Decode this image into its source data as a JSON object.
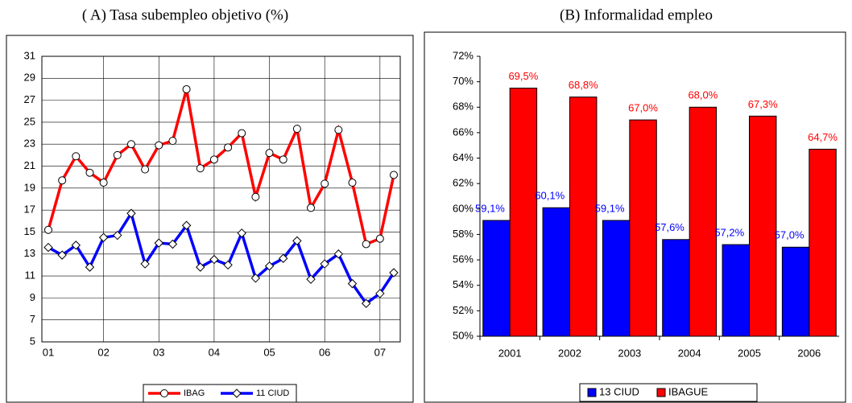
{
  "chart_data": [
    {
      "type": "line",
      "title": "( A) Tasa subempleo objetivo (%)",
      "categories": [
        "01",
        null,
        null,
        null,
        "02",
        null,
        null,
        null,
        "03",
        null,
        null,
        null,
        "04",
        null,
        null,
        null,
        "05",
        null,
        null,
        null,
        "06",
        null,
        null,
        null,
        "07",
        null
      ],
      "series": [
        {
          "name": "IBAG",
          "color": "#ff0000",
          "marker": "circle",
          "values": [
            15.2,
            19.7,
            21.9,
            20.4,
            19.5,
            22.0,
            23.0,
            20.7,
            22.9,
            23.3,
            28.0,
            20.8,
            21.6,
            22.7,
            24.0,
            18.2,
            22.2,
            21.6,
            24.4,
            17.2,
            19.4,
            24.3,
            19.5,
            13.9,
            14.4,
            20.2
          ]
        },
        {
          "name": "11 CIUD",
          "color": "#0000ff",
          "marker": "diamond",
          "values": [
            13.6,
            12.9,
            13.8,
            11.8,
            14.5,
            14.7,
            16.7,
            12.1,
            14.0,
            13.9,
            15.6,
            11.8,
            12.5,
            12.0,
            14.9,
            10.8,
            11.9,
            12.6,
            14.2,
            10.7,
            12.1,
            13.0,
            10.3,
            8.5,
            9.4,
            11.3
          ]
        }
      ],
      "ylim": [
        5,
        31
      ],
      "yticks": [
        5,
        7,
        9,
        11,
        13,
        15,
        17,
        19,
        21,
        23,
        25,
        27,
        29,
        31
      ],
      "grid": true
    },
    {
      "type": "bar",
      "title": "(B) Informalidad empleo",
      "categories": [
        "2001",
        "2002",
        "2003",
        "2004",
        "2005",
        "2006"
      ],
      "series": [
        {
          "name": "13 CIUD",
          "color": "#0000ff",
          "values": [
            59.1,
            60.1,
            59.1,
            57.6,
            57.2,
            57.0
          ],
          "value_labels": [
            "59,1%",
            "60,1%",
            "59,1%",
            "57,6%",
            "57,2%",
            "57,0%"
          ]
        },
        {
          "name": "IBAGUE",
          "color": "#ff0000",
          "values": [
            69.5,
            68.8,
            67.0,
            68.0,
            67.3,
            64.7
          ],
          "value_labels": [
            "69,5%",
            "68,8%",
            "67,0%",
            "68,0%",
            "67,3%",
            "64,7%"
          ]
        }
      ],
      "ylim": [
        50,
        72
      ],
      "yticks": [
        {
          "value": 50,
          "label": "50%"
        },
        {
          "value": 52,
          "label": "52%"
        },
        {
          "value": 54,
          "label": "54%"
        },
        {
          "value": 56,
          "label": "56%"
        },
        {
          "value": 58,
          "label": "58%"
        },
        {
          "value": 60,
          "label": "60%"
        },
        {
          "value": 62,
          "label": "62%"
        },
        {
          "value": 64,
          "label": "64%"
        },
        {
          "value": 66,
          "label": "66%"
        },
        {
          "value": 68,
          "label": "68%"
        },
        {
          "value": 70,
          "label": "70%"
        },
        {
          "value": 72,
          "label": "72%"
        }
      ],
      "grid": false
    }
  ]
}
